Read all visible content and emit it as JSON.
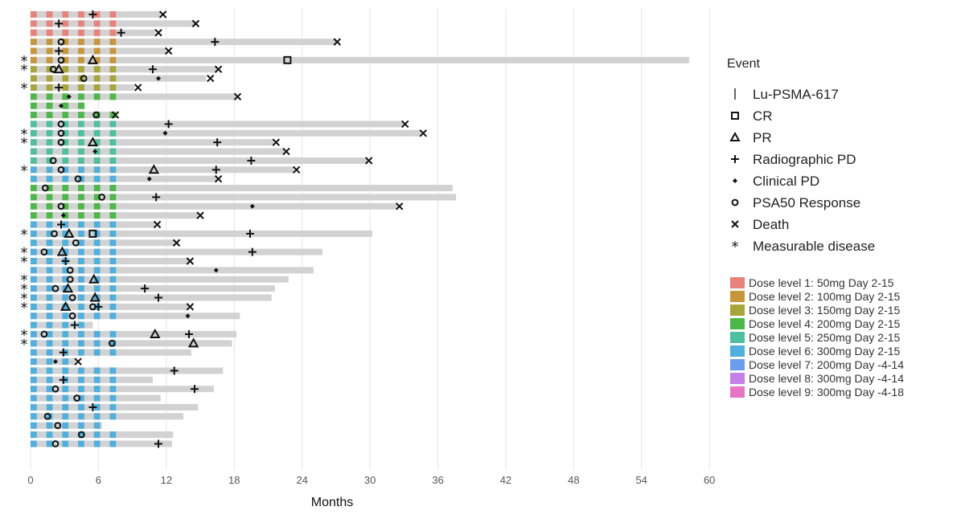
{
  "chart_data": {
    "type": "swimmer",
    "xlabel": "Months",
    "xlim": [
      0,
      60
    ],
    "xticks": [
      0,
      6,
      12,
      18,
      24,
      30,
      36,
      42,
      48,
      54,
      60
    ],
    "grid": "vertical",
    "legend_placement": "right",
    "event_legend_title": "Event",
    "event_legend": [
      {
        "key": "dose",
        "label": "Lu-PSMA-617",
        "symbol": "|"
      },
      {
        "key": "cr",
        "label": "CR",
        "symbol": "□"
      },
      {
        "key": "pr",
        "label": "PR",
        "symbol": "△"
      },
      {
        "key": "rpd",
        "label": "Radiographic PD",
        "symbol": "+"
      },
      {
        "key": "cpd",
        "label": "Clinical PD",
        "symbol": "◆"
      },
      {
        "key": "psa50",
        "label": "PSA50 Response",
        "symbol": "○"
      },
      {
        "key": "death",
        "label": "Death",
        "symbol": "×"
      },
      {
        "key": "meas",
        "label": "Measurable disease",
        "symbol": "*"
      }
    ],
    "dose_levels": [
      {
        "label": "Dose level 1: 50mg Day 2-15",
        "color": "#E8827A"
      },
      {
        "label": "Dose level 2: 100mg Day 2-15",
        "color": "#C8963A"
      },
      {
        "label": "Dose level 3: 150mg Day 2-15",
        "color": "#A6A63A"
      },
      {
        "label": "Dose level 4: 200mg Day 2-15",
        "color": "#4CB848"
      },
      {
        "label": "Dose level 5: 250mg Day 2-15",
        "color": "#4EBFA0"
      },
      {
        "label": "Dose level 6: 300mg Day 2-15",
        "color": "#4FB0DE"
      },
      {
        "label": "Dose level 7: 200mg Day -4-14",
        "color": "#6C9CF0"
      },
      {
        "label": "Dose level 8: 300mg Day -4-14",
        "color": "#C57FE8"
      },
      {
        "label": "Dose level 9: 300mg Day -4-18",
        "color": "#E874C6"
      }
    ],
    "patients": [
      {
        "dose": 1,
        "duration": 11.5,
        "meas": false,
        "events": [
          [
            "rpd",
            5.5
          ],
          [
            "death",
            11.7
          ]
        ]
      },
      {
        "dose": 1,
        "duration": 14.5,
        "meas": false,
        "events": [
          [
            "rpd",
            2.5
          ],
          [
            "death",
            14.6
          ]
        ]
      },
      {
        "dose": 1,
        "duration": 11,
        "meas": false,
        "events": [
          [
            "rpd",
            8.0
          ],
          [
            "death",
            11.3
          ]
        ]
      },
      {
        "dose": 2,
        "duration": 27,
        "meas": false,
        "events": [
          [
            "psa50",
            2.7
          ],
          [
            "rpd",
            16.3
          ],
          [
            "death",
            27.1
          ]
        ]
      },
      {
        "dose": 2,
        "duration": 12,
        "meas": false,
        "events": [
          [
            "rpd",
            2.5
          ],
          [
            "death",
            12.2
          ]
        ]
      },
      {
        "dose": 2,
        "duration": 58.2,
        "meas": true,
        "events": [
          [
            "psa50",
            2.7
          ],
          [
            "pr",
            5.5
          ],
          [
            "cr",
            22.7
          ]
        ]
      },
      {
        "dose": 3,
        "duration": 16.5,
        "meas": true,
        "events": [
          [
            "psa50",
            2.0
          ],
          [
            "pr",
            2.5
          ],
          [
            "rpd",
            10.8
          ],
          [
            "death",
            16.6
          ]
        ]
      },
      {
        "dose": 3,
        "duration": 15.5,
        "meas": false,
        "events": [
          [
            "psa50",
            4.7
          ],
          [
            "cpd",
            11.3
          ],
          [
            "death",
            15.9
          ]
        ]
      },
      {
        "dose": 3,
        "duration": 9.2,
        "meas": true,
        "events": [
          [
            "rpd",
            2.5
          ],
          [
            "death",
            9.5
          ]
        ]
      },
      {
        "dose": 4,
        "duration": 18.2,
        "meas": false,
        "events": [
          [
            "cpd",
            3.4
          ],
          [
            "death",
            18.3
          ]
        ]
      },
      {
        "dose": 4,
        "duration": 4.8,
        "meas": false,
        "events": [
          [
            "cpd",
            2.7
          ]
        ]
      },
      {
        "dose": 4,
        "duration": 7.5,
        "meas": false,
        "events": [
          [
            "psa50",
            5.8
          ],
          [
            "death",
            7.5
          ]
        ]
      },
      {
        "dose": 5,
        "duration": 33,
        "meas": false,
        "events": [
          [
            "psa50",
            2.7
          ],
          [
            "rpd",
            12.2
          ],
          [
            "death",
            33.1
          ]
        ]
      },
      {
        "dose": 5,
        "duration": 34.5,
        "meas": true,
        "events": [
          [
            "psa50",
            2.7
          ],
          [
            "cpd",
            11.9
          ],
          [
            "death",
            34.7
          ]
        ]
      },
      {
        "dose": 5,
        "duration": 21.5,
        "meas": true,
        "events": [
          [
            "psa50",
            2.7
          ],
          [
            "pr",
            5.5
          ],
          [
            "rpd",
            16.5
          ],
          [
            "death",
            21.7
          ]
        ]
      },
      {
        "dose": 5,
        "duration": 22.5,
        "meas": false,
        "events": [
          [
            "cpd",
            5.7
          ],
          [
            "death",
            22.6
          ]
        ]
      },
      {
        "dose": 5,
        "duration": 29.8,
        "meas": false,
        "events": [
          [
            "psa50",
            2.0
          ],
          [
            "rpd",
            19.5
          ],
          [
            "death",
            29.9
          ]
        ]
      },
      {
        "dose": 6,
        "duration": 23.3,
        "meas": true,
        "events": [
          [
            "psa50",
            2.7
          ],
          [
            "pr",
            10.9
          ],
          [
            "rpd",
            16.4
          ],
          [
            "death",
            23.5
          ]
        ]
      },
      {
        "dose": 6,
        "duration": 16.5,
        "meas": false,
        "events": [
          [
            "psa50",
            4.2
          ],
          [
            "cpd",
            10.5
          ],
          [
            "death",
            16.6
          ]
        ]
      },
      {
        "dose": 4,
        "duration": 37.3,
        "meas": false,
        "events": [
          [
            "psa50",
            1.3
          ]
        ]
      },
      {
        "dose": 4,
        "duration": 37.6,
        "meas": false,
        "events": [
          [
            "psa50",
            6.3
          ],
          [
            "rpd",
            11.1
          ]
        ]
      },
      {
        "dose": 4,
        "duration": 32.5,
        "meas": false,
        "events": [
          [
            "psa50",
            2.7
          ],
          [
            "cpd",
            19.6
          ],
          [
            "death",
            32.6
          ]
        ]
      },
      {
        "dose": 4,
        "duration": 14.8,
        "meas": false,
        "events": [
          [
            "cpd",
            2.9
          ],
          [
            "death",
            15.0
          ]
        ]
      },
      {
        "dose": 6,
        "duration": 11,
        "meas": false,
        "events": [
          [
            "rpd",
            2.7
          ],
          [
            "death",
            11.2
          ]
        ]
      },
      {
        "dose": 6,
        "duration": 30.2,
        "meas": true,
        "events": [
          [
            "psa50",
            2.1
          ],
          [
            "pr",
            3.4
          ],
          [
            "cr",
            5.5
          ],
          [
            "rpd",
            19.4
          ]
        ]
      },
      {
        "dose": 6,
        "duration": 12.7,
        "meas": false,
        "events": [
          [
            "psa50",
            4.0
          ],
          [
            "death",
            12.9
          ]
        ]
      },
      {
        "dose": 6,
        "duration": 25.8,
        "meas": true,
        "events": [
          [
            "psa50",
            1.2
          ],
          [
            "pr",
            2.8
          ],
          [
            "rpd",
            19.6
          ]
        ]
      },
      {
        "dose": 6,
        "duration": 14,
        "meas": true,
        "events": [
          [
            "rpd",
            3.1
          ],
          [
            "death",
            14.1
          ]
        ]
      },
      {
        "dose": 6,
        "duration": 25,
        "meas": false,
        "events": [
          [
            "psa50",
            3.5
          ],
          [
            "cpd",
            16.4
          ]
        ]
      },
      {
        "dose": 6,
        "duration": 22.8,
        "meas": true,
        "events": [
          [
            "psa50",
            3.5
          ],
          [
            "pr",
            5.6
          ]
        ]
      },
      {
        "dose": 6,
        "duration": 21.6,
        "meas": true,
        "events": [
          [
            "psa50",
            2.2
          ],
          [
            "pr",
            3.3
          ],
          [
            "rpd",
            10.1
          ]
        ]
      },
      {
        "dose": 6,
        "duration": 21.3,
        "meas": true,
        "events": [
          [
            "psa50",
            3.7
          ],
          [
            "pr",
            5.7
          ],
          [
            "rpd",
            11.3
          ]
        ]
      },
      {
        "dose": 6,
        "duration": 14,
        "meas": true,
        "events": [
          [
            "pr",
            3.1
          ],
          [
            "psa50",
            5.5
          ],
          [
            "rpd",
            6.0
          ],
          [
            "death",
            14.1
          ]
        ]
      },
      {
        "dose": 6,
        "duration": 18.5,
        "meas": false,
        "events": [
          [
            "psa50",
            3.7
          ],
          [
            "cpd",
            13.9
          ]
        ]
      },
      {
        "dose": 6,
        "duration": 5.5,
        "meas": false,
        "events": [
          [
            "rpd",
            3.9
          ]
        ]
      },
      {
        "dose": 6,
        "duration": 18.2,
        "meas": true,
        "events": [
          [
            "psa50",
            1.2
          ],
          [
            "pr",
            11.0
          ],
          [
            "rpd",
            14.0
          ]
        ]
      },
      {
        "dose": 6,
        "duration": 17.8,
        "meas": true,
        "events": [
          [
            "psa50",
            7.2
          ],
          [
            "pr",
            14.4
          ]
        ]
      },
      {
        "dose": 6,
        "duration": 14.2,
        "meas": false,
        "events": [
          [
            "rpd",
            2.9
          ]
        ]
      },
      {
        "dose": 6,
        "duration": 4,
        "meas": false,
        "events": [
          [
            "cpd",
            2.2
          ],
          [
            "death",
            4.2
          ]
        ]
      },
      {
        "dose": 6,
        "duration": 17,
        "meas": false,
        "events": [
          [
            "rpd",
            12.7
          ]
        ]
      },
      {
        "dose": 6,
        "duration": 10.8,
        "meas": false,
        "events": [
          [
            "rpd",
            2.9
          ]
        ]
      },
      {
        "dose": 6,
        "duration": 16.2,
        "meas": false,
        "events": [
          [
            "psa50",
            2.2
          ],
          [
            "rpd",
            14.5
          ]
        ]
      },
      {
        "dose": 6,
        "duration": 11.5,
        "meas": false,
        "events": [
          [
            "psa50",
            4.1
          ]
        ]
      },
      {
        "dose": 6,
        "duration": 14.8,
        "meas": false,
        "events": [
          [
            "rpd",
            5.5
          ]
        ]
      },
      {
        "dose": 6,
        "duration": 13.5,
        "meas": false,
        "events": [
          [
            "psa50",
            1.5
          ]
        ]
      },
      {
        "dose": 6,
        "duration": 6.3,
        "meas": false,
        "events": [
          [
            "psa50",
            2.4
          ]
        ]
      },
      {
        "dose": 6,
        "duration": 12.6,
        "meas": false,
        "events": [
          [
            "psa50",
            4.5
          ]
        ]
      },
      {
        "dose": 6,
        "duration": 12.5,
        "meas": false,
        "events": [
          [
            "psa50",
            2.2
          ],
          [
            "rpd",
            11.3
          ]
        ]
      }
    ]
  }
}
